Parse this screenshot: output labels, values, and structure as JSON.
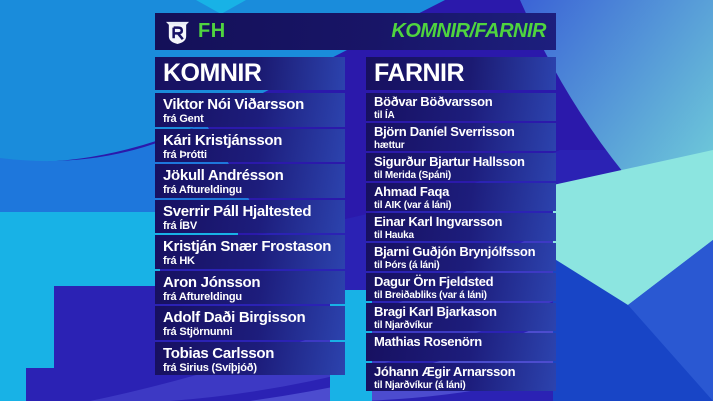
{
  "header": {
    "club": "FH",
    "title": "KOMNIR/FARNIR",
    "logo_icon": "club-crest-icon"
  },
  "komnir": {
    "title": "KOMNIR",
    "players": [
      {
        "name": "Viktor Nói Viðarsson",
        "detail": "frá Gent"
      },
      {
        "name": "Kári Kristjánsson",
        "detail": "frá Þrótti"
      },
      {
        "name": "Jökull Andrésson",
        "detail": "frá Aftureldingu"
      },
      {
        "name": "Sverrir Páll Hjaltested",
        "detail": "frá ÍBV"
      },
      {
        "name": "Kristján Snær Frostason",
        "detail": "frá HK"
      },
      {
        "name": "Aron Jónsson",
        "detail": "frá Aftureldingu"
      },
      {
        "name": "Adolf Daði Birgisson",
        "detail": "frá Stjörnunni"
      },
      {
        "name": "Tobias Carlsson",
        "detail": "frá Sirius (Svíþjóð)"
      }
    ]
  },
  "farnir": {
    "title": "FARNIR",
    "players": [
      {
        "name": "Böðvar Böðvarsson",
        "detail": "til ÍA"
      },
      {
        "name": "Björn Daníel Sverrisson",
        "detail": "hættur"
      },
      {
        "name": "Sigurður Bjartur Hallsson",
        "detail": "til Merida (Spáni)"
      },
      {
        "name": "Ahmad Faqa",
        "detail": "til AIK (var á láni)"
      },
      {
        "name": "Einar Karl Ingvarsson",
        "detail": "til Hauka"
      },
      {
        "name": "Bjarni Guðjón Brynjólfsson",
        "detail": "til Þórs (á láni)"
      },
      {
        "name": "Dagur Örn Fjeldsted",
        "detail": "til Breiðabliks (var á láni)"
      },
      {
        "name": "Bragi Karl Bjarkason",
        "detail": "til Njarðvíkur"
      },
      {
        "name": "Mathias Rosenörn",
        "detail": ""
      },
      {
        "name": "Jóhann Ægir Arnarsson",
        "detail": "til Njarðvíkur (á láni)"
      }
    ]
  },
  "colors": {
    "accent_green": "#4fd43f",
    "panel_dark": "#171060",
    "panel_mid": "#1b1a72",
    "panel_light": "#2c43ae",
    "bg_royal": "#2b19ab",
    "bg_bright_blue": "#1a8cdb",
    "bg_medium_blue": "#1e77dc",
    "bg_cyan": "#18b2e6",
    "bg_teal": "#79e0da"
  }
}
